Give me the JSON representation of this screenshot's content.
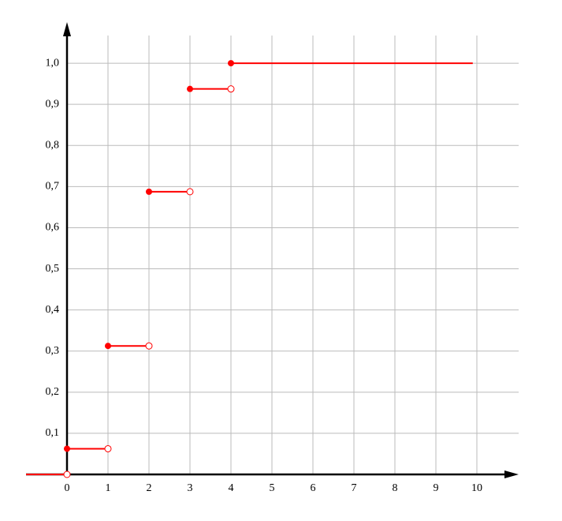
{
  "chart_data": {
    "type": "step",
    "x": [
      -1,
      0,
      1,
      2,
      3,
      4
    ],
    "x_end": [
      0,
      1,
      2,
      3,
      4,
      9.9
    ],
    "values": [
      0,
      0.0625,
      0.3125,
      0.6875,
      0.9375,
      1
    ],
    "closed_left": [
      false,
      true,
      true,
      true,
      true,
      true
    ],
    "open_right": [
      true,
      true,
      true,
      true,
      true,
      false
    ],
    "color": "#ff0000",
    "xlim": [
      -1,
      11
    ],
    "ylim": [
      0,
      1.1
    ],
    "xticks": [
      0,
      1,
      2,
      3,
      4,
      5,
      6,
      7,
      8,
      9,
      10
    ],
    "yticks": [
      {
        "value": 0.1,
        "label": "0,1"
      },
      {
        "value": 0.2,
        "label": "0,2"
      },
      {
        "value": 0.3,
        "label": "0,3"
      },
      {
        "value": 0.4,
        "label": "0,4"
      },
      {
        "value": 0.5,
        "label": "0,5"
      },
      {
        "value": 0.6,
        "label": "0,6"
      },
      {
        "value": 0.7,
        "label": "0,7"
      },
      {
        "value": 0.8,
        "label": "0,8"
      },
      {
        "value": 0.9,
        "label": "0,9"
      },
      {
        "value": 1.0,
        "label": "1,0"
      }
    ],
    "grid": true
  }
}
